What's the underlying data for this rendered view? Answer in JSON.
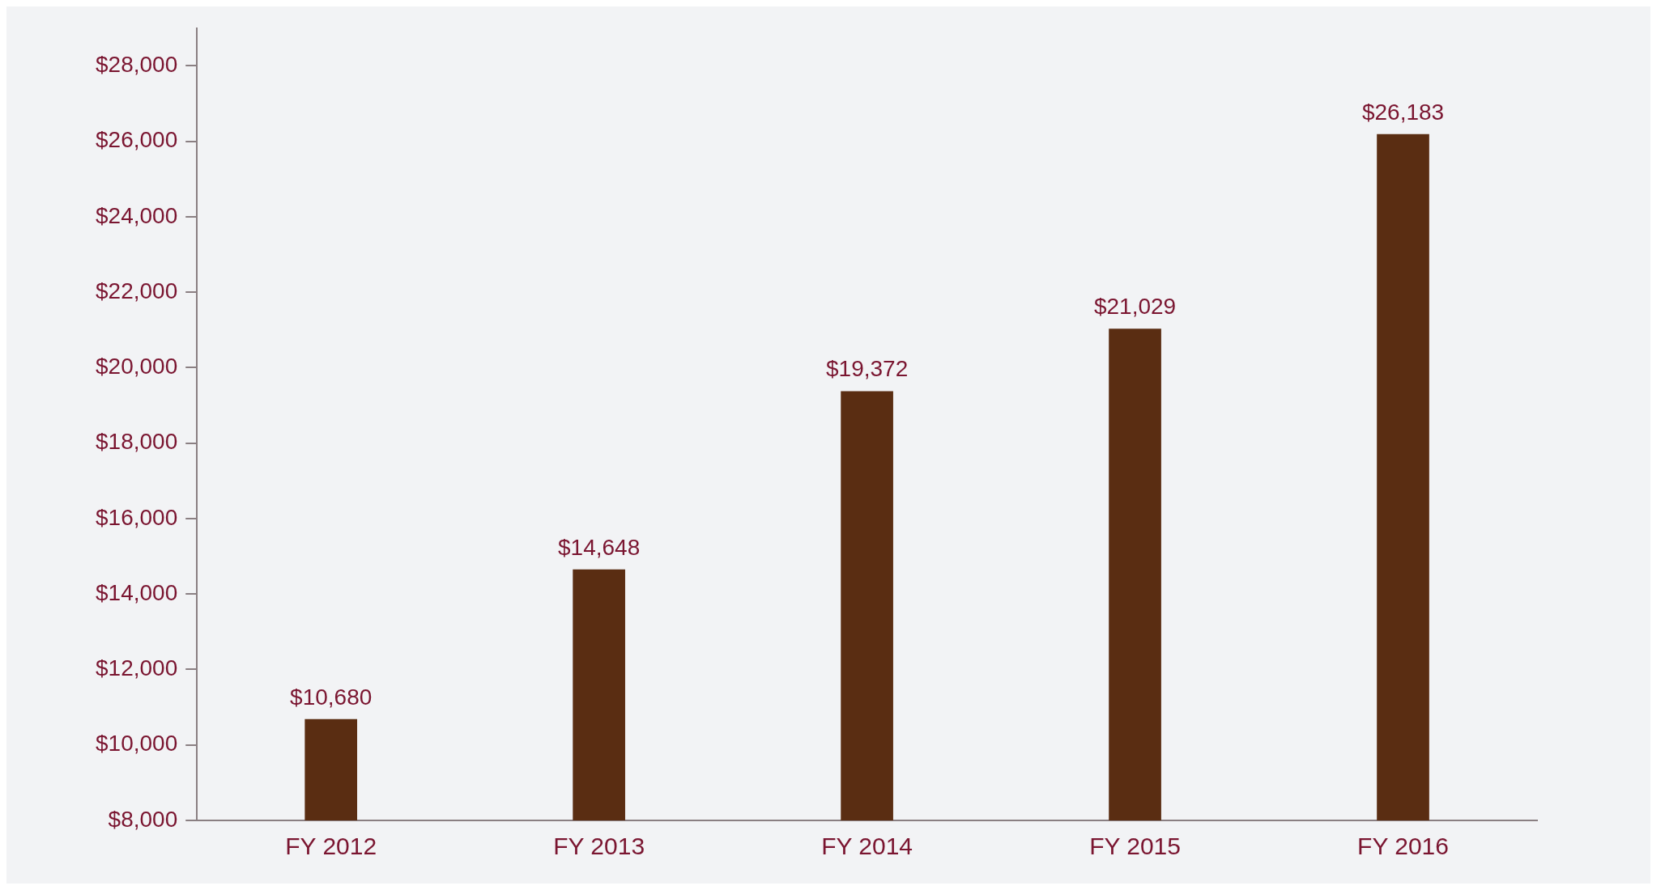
{
  "chart_data": {
    "type": "bar",
    "categories": [
      "FY 2012",
      "FY 2013",
      "FY 2014",
      "FY 2015",
      "FY 2016"
    ],
    "values": [
      10680,
      14648,
      19372,
      21029,
      26183
    ],
    "color": "#5a2d12",
    "ylim": [
      8000,
      29000
    ],
    "yticks": [
      {
        "value": 8000,
        "label": "$8,000"
      },
      {
        "value": 10000,
        "label": "$10,000"
      },
      {
        "value": 12000,
        "label": "$12,000"
      },
      {
        "value": 14000,
        "label": "$14,000"
      },
      {
        "value": 16000,
        "label": "$16,000"
      },
      {
        "value": 18000,
        "label": "$18,000"
      },
      {
        "value": 20000,
        "label": "$20,000"
      },
      {
        "value": 22000,
        "label": "$22,000"
      },
      {
        "value": 24000,
        "label": "$24,000"
      },
      {
        "value": 26000,
        "label": "$26,000"
      },
      {
        "value": 28000,
        "label": "$28,000"
      }
    ],
    "value_labels": [
      "$10,680",
      "$14,648",
      "$19,372",
      "$21,029",
      "$26,183"
    ],
    "grid": false,
    "legend": false
  }
}
